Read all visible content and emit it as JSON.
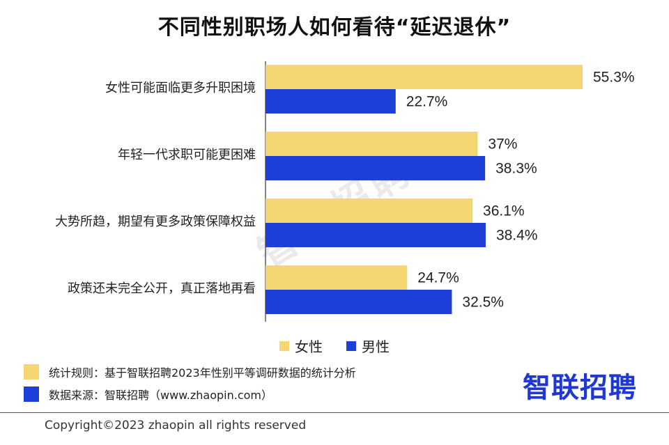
{
  "chart_data": {
    "type": "bar",
    "orientation": "horizontal",
    "title": "不同性别职场人如何看待“延迟退休”",
    "categories": [
      "女性可能面临更多升职困境",
      "年轻一代求职可能更困难",
      "大势所趋，期望有更多政策保障权益",
      "政策还未完全公开，真正落地再看"
    ],
    "series": [
      {
        "name": "女性",
        "values": [
          55.3,
          37,
          36.1,
          24.7
        ],
        "labels": [
          "55.3%",
          "37%",
          "36.1%",
          "24.7%"
        ],
        "color": "#f6d670"
      },
      {
        "name": "男性",
        "values": [
          22.7,
          38.3,
          38.4,
          32.5
        ],
        "labels": [
          "22.7%",
          "38.3%",
          "38.4%",
          "32.5%"
        ],
        "color": "#1e3fd8"
      }
    ],
    "xlim": [
      0,
      55.3
    ],
    "legend": "bottom"
  },
  "notes": [
    {
      "text": "统计规则：基于智联招聘2023年性别平等调研数据的统计分析",
      "color": "#f6d670"
    },
    {
      "text": "数据来源：智联招聘（www.zhaopin.com）",
      "color": "#1e3fd8"
    }
  ],
  "brand": "智联招聘",
  "watermark": "智联招聘",
  "copyright": "Copyright©2023 zhaopin all rights reserved"
}
